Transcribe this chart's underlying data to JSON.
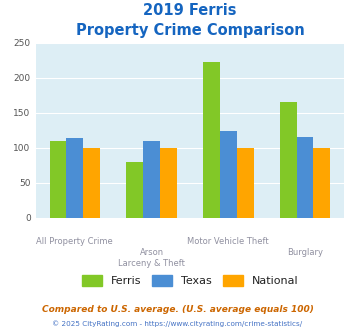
{
  "title_line1": "2019 Ferris",
  "title_line2": "Property Crime Comparison",
  "xtick_labels_row1": [
    "All Property Crime",
    "",
    "Motor Vehicle Theft",
    ""
  ],
  "xtick_labels_row2": [
    "",
    "Arson\nLarceny & Theft",
    "",
    "Burglary"
  ],
  "series": {
    "Ferris": [
      110,
      80,
      222,
      165
    ],
    "Texas": [
      114,
      110,
      124,
      115
    ],
    "National": [
      100,
      100,
      100,
      100
    ]
  },
  "colors": {
    "Ferris": "#82c827",
    "Texas": "#4b8ed4",
    "National": "#ffa500"
  },
  "ylim": [
    0,
    250
  ],
  "yticks": [
    0,
    50,
    100,
    150,
    200,
    250
  ],
  "title_color": "#1565c0",
  "title_fontsize": 10.5,
  "axis_bg_color": "#ddeef5",
  "fig_bg_color": "#ffffff",
  "grid_color": "#ffffff",
  "xtick_color": "#9090a0",
  "ytick_color": "#555555",
  "footnote1": "Compared to U.S. average. (U.S. average equals 100)",
  "footnote2": "© 2025 CityRating.com - https://www.cityrating.com/crime-statistics/",
  "footnote1_color": "#cc6600",
  "footnote2_color": "#4472c4",
  "legend_text_color": "#222222",
  "bar_width": 0.22
}
